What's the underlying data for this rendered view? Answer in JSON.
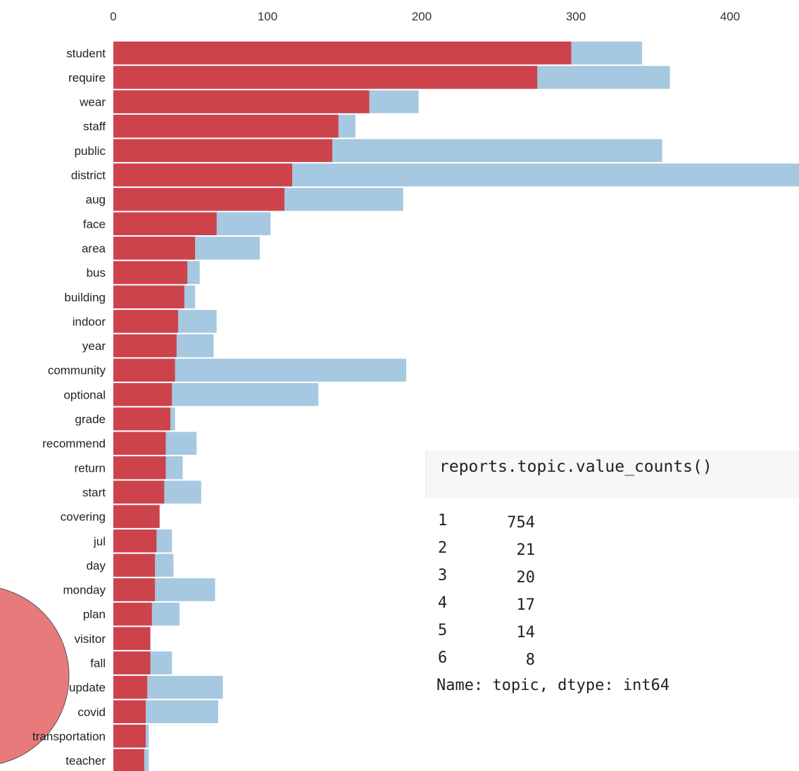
{
  "chart_data": {
    "type": "bar",
    "orientation": "horizontal",
    "stacked": false,
    "xticks": [
      0,
      100,
      200,
      300,
      400
    ],
    "xlim": [
      0,
      450
    ],
    "categories": [
      "student",
      "require",
      "wear",
      "staff",
      "public",
      "district",
      "aug",
      "face",
      "area",
      "bus",
      "building",
      "indoor",
      "year",
      "community",
      "optional",
      "grade",
      "recommend",
      "return",
      "start",
      "covering",
      "jul",
      "day",
      "monday",
      "plan",
      "visitor",
      "fall",
      "update",
      "covid",
      "transportation",
      "teacher"
    ],
    "series": [
      {
        "color": "#a6c8e0",
        "values": [
          343,
          361,
          198,
          157,
          356,
          447,
          188,
          102,
          95,
          56,
          53,
          67,
          65,
          190,
          133,
          40,
          54,
          45,
          57,
          30,
          38,
          39,
          66,
          43,
          24,
          38,
          71,
          68,
          23,
          23
        ]
      },
      {
        "color": "#cc434c",
        "values": [
          297,
          275,
          166,
          146,
          142,
          116,
          111,
          67,
          53,
          48,
          46,
          42,
          41,
          40,
          38,
          37,
          34,
          34,
          33,
          30,
          28,
          27,
          27,
          25,
          24,
          24,
          22,
          21,
          21,
          20
        ]
      }
    ]
  },
  "bubble": {
    "color": "#e87a7c"
  },
  "code": {
    "command": "reports.topic.value_counts()",
    "rows": [
      {
        "index": "1",
        "count": "754"
      },
      {
        "index": "2",
        "count": "21"
      },
      {
        "index": "3",
        "count": "20"
      },
      {
        "index": "4",
        "count": "17"
      },
      {
        "index": "5",
        "count": "14"
      },
      {
        "index": "6",
        "count": "8"
      }
    ],
    "footer": "Name: topic, dtype: int64"
  }
}
